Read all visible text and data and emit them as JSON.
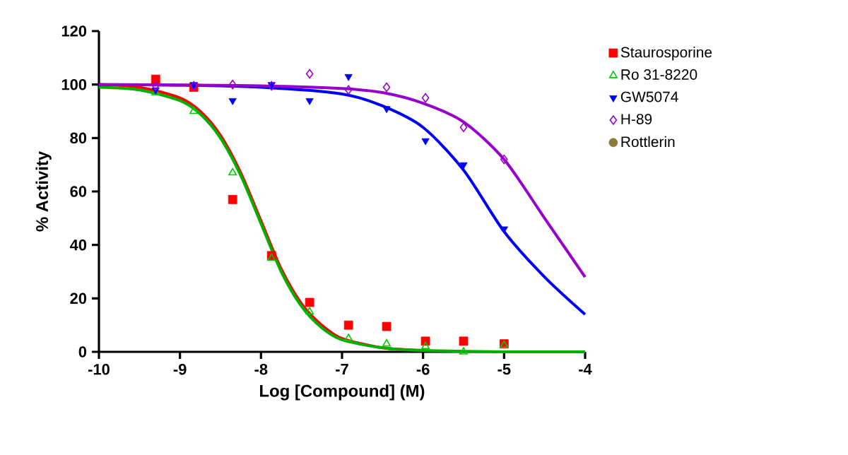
{
  "chart_data": {
    "type": "scatter",
    "xlabel": "Log [Compound] (M)",
    "ylabel": "% Activity",
    "xlim": [
      -10,
      -4
    ],
    "ylim": [
      0,
      120
    ],
    "xticks": [
      -10,
      -9,
      -8,
      -7,
      -6,
      -5,
      -4
    ],
    "yticks": [
      0,
      20,
      40,
      60,
      80,
      100,
      120
    ],
    "grid": false,
    "legend": "right",
    "series": [
      {
        "name": "Staurosporine",
        "color": "#ff0000",
        "marker": "square",
        "x": [
          -9.3,
          -8.83,
          -8.35,
          -7.87,
          -7.4,
          -6.92,
          -6.45,
          -5.97,
          -5.5,
          -5.0
        ],
        "values": [
          102,
          99,
          57,
          36,
          18.5,
          10,
          9.5,
          4,
          4,
          3
        ]
      },
      {
        "name": "Ro 31-8220",
        "color": "#00cc00",
        "marker": "triangle",
        "x": [
          -9.3,
          -8.83,
          -8.35,
          -7.87,
          -7.4,
          -6.92,
          -6.45,
          -5.97,
          -5.5,
          -5.0
        ],
        "values": [
          97,
          90,
          67,
          35,
          15,
          5,
          3,
          2,
          0,
          2.5
        ]
      },
      {
        "name": "GW5074",
        "color": "#0000ff",
        "marker": "triangle-down",
        "x": [
          -9.3,
          -8.83,
          -8.35,
          -7.87,
          -7.4,
          -6.92,
          -6.45,
          -5.97,
          -5.5,
          -5.0
        ],
        "values": [
          98,
          100,
          94,
          100,
          94,
          103,
          91,
          79,
          70,
          46
        ]
      },
      {
        "name": "H-89",
        "color": "#9900cc",
        "marker": "diamond",
        "x": [
          -9.3,
          -8.83,
          -8.35,
          -7.87,
          -7.4,
          -6.92,
          -6.45,
          -5.97,
          -5.5,
          -5.0
        ],
        "values": [
          99.5,
          99.5,
          100,
          99.5,
          104,
          98,
          99,
          95,
          84,
          72
        ]
      },
      {
        "name": "Rottlerin",
        "color": "#8b7b3a",
        "marker": "circle"
      },
      {
        "type": "line",
        "color": "#ff0000",
        "marker": "none",
        "x": [
          -10,
          -9.5,
          -9,
          -8.75,
          -8.5,
          -8.25,
          -8,
          -7.75,
          -7.5,
          -7.25,
          -7,
          -6.5,
          -6
        ],
        "values": [
          100,
          99,
          95,
          90,
          81,
          67,
          49,
          31,
          18,
          10,
          5,
          1.5,
          0.5
        ]
      },
      {
        "type": "line",
        "color": "#00b000",
        "marker": "none",
        "x": [
          -10,
          -9.5,
          -9,
          -8.75,
          -8.5,
          -8.25,
          -8,
          -7.75,
          -7.5,
          -7.25,
          -7,
          -6.5,
          -6,
          -5,
          -4
        ],
        "values": [
          99,
          98,
          94,
          89,
          80,
          66,
          48,
          30,
          17,
          9,
          4.5,
          1.5,
          0.5,
          0,
          0
        ]
      },
      {
        "type": "line",
        "color": "#0000ff",
        "marker": "none",
        "x": [
          -10,
          -9,
          -8,
          -7,
          -6.5,
          -6,
          -5.5,
          -5,
          -4.5,
          -4
        ],
        "values": [
          100,
          99.8,
          99,
          96.5,
          92,
          84,
          68,
          45,
          28,
          14
        ]
      },
      {
        "type": "line",
        "color": "#9900cc",
        "marker": "none",
        "x": [
          -10,
          -9,
          -8,
          -7,
          -6.5,
          -6,
          -5.5,
          -5,
          -4.5,
          -4
        ],
        "values": [
          100,
          99.8,
          99.5,
          98.5,
          97,
          93,
          86,
          72,
          50,
          28
        ]
      }
    ]
  }
}
